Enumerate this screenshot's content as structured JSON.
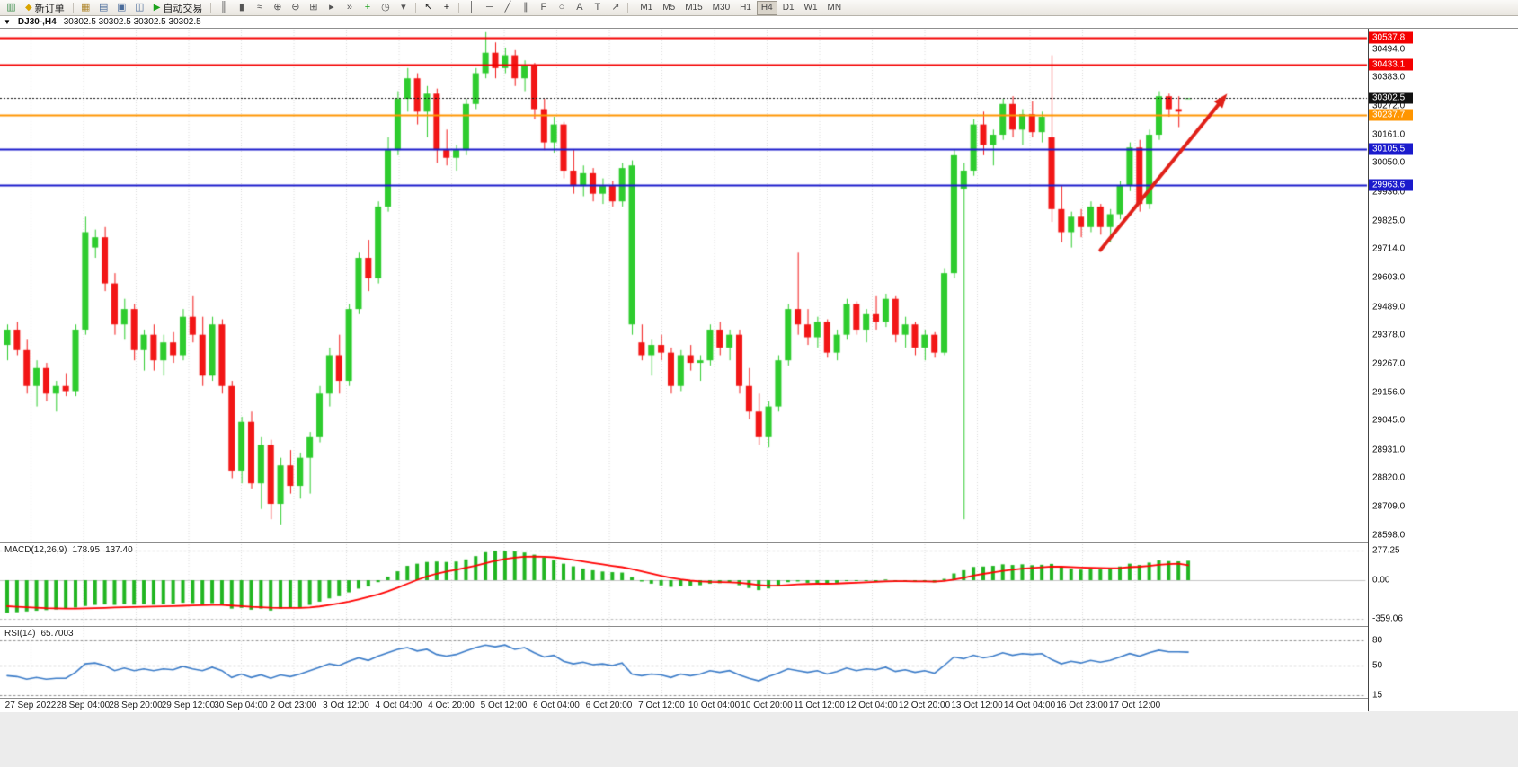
{
  "toolbar": {
    "new_order_label": "新订单",
    "autotrade_label": "自动交易",
    "items": [
      {
        "type": "icon",
        "name": "new-chart-icon",
        "glyph": "▥",
        "color": "#3f8f4f"
      },
      {
        "type": "button",
        "name": "new-order-button",
        "glyph": "◆",
        "glyph_color": "#d9a400",
        "label_key": "new_order_label"
      },
      {
        "type": "sep"
      },
      {
        "type": "icon",
        "name": "chart-profiles-icon",
        "glyph": "▦",
        "color": "#b08830"
      },
      {
        "type": "icon",
        "name": "market-watch-icon",
        "glyph": "▤",
        "color": "#4a6b9a"
      },
      {
        "type": "icon",
        "name": "navigator-icon",
        "glyph": "▣",
        "color": "#4a6b9a"
      },
      {
        "type": "icon",
        "name": "terminal-icon",
        "glyph": "◫",
        "color": "#4a6b9a"
      },
      {
        "type": "button",
        "name": "autotrade-button",
        "glyph": "▶",
        "glyph_color": "#1ca21c",
        "label_key": "autotrade_label"
      },
      {
        "type": "sep"
      },
      {
        "type": "icon",
        "name": "bar-chart-icon",
        "glyph": "║",
        "color": "#555"
      },
      {
        "type": "icon",
        "name": "candlestick-chart-icon",
        "glyph": "▮",
        "color": "#555"
      },
      {
        "type": "icon",
        "name": "line-chart-icon",
        "glyph": "≈",
        "color": "#555"
      },
      {
        "type": "icon",
        "name": "zoom-in-icon",
        "glyph": "⊕",
        "color": "#555"
      },
      {
        "type": "icon",
        "name": "zoom-out-icon",
        "glyph": "⊖",
        "color": "#555"
      },
      {
        "type": "icon",
        "name": "tile-windows-icon",
        "glyph": "⊞",
        "color": "#555"
      },
      {
        "type": "icon",
        "name": "auto-scroll-icon",
        "glyph": "▸",
        "color": "#555"
      },
      {
        "type": "icon",
        "name": "chart-shift-icon",
        "glyph": "»",
        "color": "#555"
      },
      {
        "type": "icon",
        "name": "indicators-icon",
        "glyph": "+",
        "color": "#1ca21c"
      },
      {
        "type": "icon",
        "name": "periods-icon",
        "glyph": "◷",
        "color": "#555"
      },
      {
        "type": "icon",
        "name": "templates-icon",
        "glyph": "▾",
        "color": "#555"
      },
      {
        "type": "sep"
      },
      {
        "type": "icon",
        "name": "cursor-icon",
        "glyph": "↖",
        "color": "#222"
      },
      {
        "type": "icon",
        "name": "crosshair-icon",
        "glyph": "+",
        "color": "#222"
      },
      {
        "type": "sep"
      },
      {
        "type": "icon",
        "name": "vertical-line-icon",
        "glyph": "│",
        "color": "#555"
      },
      {
        "type": "icon",
        "name": "horizontal-line-icon",
        "glyph": "─",
        "color": "#555"
      },
      {
        "type": "icon",
        "name": "trendline-icon",
        "glyph": "╱",
        "color": "#555"
      },
      {
        "type": "icon",
        "name": "equidistant-channel-icon",
        "glyph": "∥",
        "color": "#555"
      },
      {
        "type": "icon",
        "name": "fibonacci-icon",
        "glyph": "F",
        "color": "#555"
      },
      {
        "type": "icon",
        "name": "shapes-icon",
        "glyph": "○",
        "color": "#555"
      },
      {
        "type": "icon",
        "name": "text-icon",
        "glyph": "A",
        "color": "#555"
      },
      {
        "type": "icon",
        "name": "text-label-icon",
        "glyph": "T",
        "color": "#555"
      },
      {
        "type": "icon",
        "name": "arrows-icon",
        "glyph": "↗",
        "color": "#555"
      },
      {
        "type": "sep"
      }
    ],
    "timeframes": [
      "M1",
      "M5",
      "M15",
      "M30",
      "H1",
      "H4",
      "D1",
      "W1",
      "MN"
    ],
    "active_timeframe": "H4"
  },
  "chart_window": {
    "title": "DJ30-,H4",
    "ohlc": "30302.5 30302.5 30302.5 30302.5"
  },
  "levels": [
    {
      "label": "30537.8",
      "value": 30537.8,
      "color": "#f40000",
      "style": "solid",
      "type": "resistance-line"
    },
    {
      "label": "30433.1",
      "value": 30433.1,
      "color": "#f40000",
      "style": "solid",
      "type": "resistance-line"
    },
    {
      "label": "30302.5",
      "value": 30302.5,
      "color": "#111111",
      "style": "dotted",
      "type": "current-price-line"
    },
    {
      "label": "30237.7",
      "value": 30237.7,
      "color": "#ff9500",
      "style": "solid",
      "type": "pivot-line"
    },
    {
      "label": "30105.5",
      "value": 30105.5,
      "color": "#1a1acc",
      "style": "solid",
      "type": "support-line"
    },
    {
      "label": "29963.6",
      "value": 29963.6,
      "color": "#1a1acc",
      "style": "solid",
      "type": "support-line"
    }
  ],
  "price_axis": [
    "30494.0",
    "30383.0",
    "30272.0",
    "30161.0",
    "30050.0",
    "29936.0",
    "29825.0",
    "29714.0",
    "29603.0",
    "29489.0",
    "29378.0",
    "29267.0",
    "29156.0",
    "29045.0",
    "28931.0",
    "28820.0",
    "28709.0",
    "28598.0"
  ],
  "macd": {
    "label": "MACD(12,26,9)",
    "value_main": "178.95",
    "value_signal": "137.40",
    "axis": [
      "277.25",
      "0.00",
      "-359.06"
    ]
  },
  "rsi": {
    "label": "RSI(14)",
    "value": "65.7003",
    "axis": [
      "80",
      "50",
      "15"
    ]
  },
  "time_axis": [
    "27 Sep 2022",
    "28 Sep 04:00",
    "28 Sep 20:00",
    "29 Sep 12:00",
    "30 Sep 04:00",
    "2 Oct 23:00",
    "3 Oct 12:00",
    "4 Oct 04:00",
    "4 Oct 20:00",
    "5 Oct 12:00",
    "6 Oct 04:00",
    "6 Oct 20:00",
    "7 Oct 12:00",
    "10 Oct 04:00",
    "10 Oct 20:00",
    "11 Oct 12:00",
    "12 Oct 04:00",
    "12 Oct 20:00",
    "13 Oct 12:00",
    "14 Oct 04:00",
    "16 Oct 23:00",
    "17 Oct 12:00"
  ],
  "colors": {
    "bull": "#2ecc2e",
    "bear": "#f21616",
    "macd_hist": "#21b521",
    "macd_signal": "#ff0000",
    "rsi_line": "#3a7bc8",
    "arrow": "#e02018",
    "grid": "#dadada",
    "level_dash": "#999999"
  },
  "chart_data": {
    "type": "candlestick",
    "symbol": "DJ30-",
    "timeframe": "H4",
    "ylim": [
      28580,
      30570
    ],
    "candles": [
      [
        29340,
        29420,
        29280,
        29400
      ],
      [
        29400,
        29430,
        29300,
        29320
      ],
      [
        29320,
        29360,
        29150,
        29180
      ],
      [
        29180,
        29280,
        29100,
        29250
      ],
      [
        29250,
        29270,
        29120,
        29150
      ],
      [
        29150,
        29200,
        29080,
        29180
      ],
      [
        29180,
        29230,
        29140,
        29160
      ],
      [
        29160,
        29420,
        29140,
        29400
      ],
      [
        29400,
        29840,
        29380,
        29780
      ],
      [
        29720,
        29790,
        29680,
        29760
      ],
      [
        29760,
        29800,
        29550,
        29580
      ],
      [
        29580,
        29620,
        29380,
        29420
      ],
      [
        29420,
        29520,
        29360,
        29480
      ],
      [
        29480,
        29500,
        29280,
        29320
      ],
      [
        29320,
        29400,
        29240,
        29380
      ],
      [
        29380,
        29420,
        29240,
        29280
      ],
      [
        29280,
        29380,
        29220,
        29350
      ],
      [
        29350,
        29390,
        29270,
        29300
      ],
      [
        29300,
        29480,
        29280,
        29450
      ],
      [
        29450,
        29530,
        29350,
        29380
      ],
      [
        29380,
        29450,
        29180,
        29220
      ],
      [
        29220,
        29450,
        29200,
        29420
      ],
      [
        29420,
        29440,
        29150,
        29180
      ],
      [
        29180,
        29200,
        28820,
        28850
      ],
      [
        28850,
        29060,
        28800,
        29040
      ],
      [
        29040,
        29080,
        28780,
        28800
      ],
      [
        28800,
        28980,
        28700,
        28950
      ],
      [
        28950,
        28970,
        28660,
        28720
      ],
      [
        28720,
        28900,
        28640,
        28870
      ],
      [
        28870,
        28930,
        28760,
        28790
      ],
      [
        28790,
        28920,
        28740,
        28900
      ],
      [
        28900,
        29000,
        28760,
        28980
      ],
      [
        28980,
        29180,
        28960,
        29150
      ],
      [
        29150,
        29330,
        29100,
        29300
      ],
      [
        29300,
        29380,
        29150,
        29200
      ],
      [
        29200,
        29500,
        29180,
        29480
      ],
      [
        29480,
        29700,
        29460,
        29680
      ],
      [
        29680,
        29750,
        29550,
        29600
      ],
      [
        29600,
        29900,
        29580,
        29880
      ],
      [
        29880,
        30150,
        29860,
        30100
      ],
      [
        30100,
        30330,
        30080,
        30300
      ],
      [
        30300,
        30420,
        30250,
        30380
      ],
      [
        30380,
        30400,
        30200,
        30250
      ],
      [
        30250,
        30350,
        30150,
        30320
      ],
      [
        30320,
        30340,
        30050,
        30100
      ],
      [
        30100,
        30180,
        30040,
        30070
      ],
      [
        30070,
        30120,
        30020,
        30100
      ],
      [
        30100,
        30300,
        30080,
        30280
      ],
      [
        30280,
        30420,
        30260,
        30400
      ],
      [
        30400,
        30560,
        30380,
        30480
      ],
      [
        30480,
        30520,
        30380,
        30420
      ],
      [
        30420,
        30500,
        30400,
        30470
      ],
      [
        30470,
        30490,
        30350,
        30380
      ],
      [
        30380,
        30450,
        30330,
        30430
      ],
      [
        30430,
        30440,
        30220,
        30260
      ],
      [
        30260,
        30300,
        30100,
        30130
      ],
      [
        30130,
        30230,
        30090,
        30200
      ],
      [
        30200,
        30210,
        29990,
        30020
      ],
      [
        30020,
        30100,
        29930,
        29960
      ],
      [
        29960,
        30040,
        29920,
        30010
      ],
      [
        30010,
        30030,
        29900,
        29930
      ],
      [
        29930,
        29990,
        29890,
        29960
      ],
      [
        29960,
        29980,
        29880,
        29900
      ],
      [
        29900,
        30050,
        29880,
        30030
      ],
      [
        29420,
        30060,
        29380,
        30040
      ],
      [
        29350,
        29420,
        29280,
        29300
      ],
      [
        29300,
        29360,
        29220,
        29340
      ],
      [
        29340,
        29380,
        29280,
        29310
      ],
      [
        29310,
        29330,
        29150,
        29180
      ],
      [
        29180,
        29320,
        29160,
        29300
      ],
      [
        29300,
        29340,
        29240,
        29270
      ],
      [
        29270,
        29300,
        29200,
        29280
      ],
      [
        29280,
        29420,
        29260,
        29400
      ],
      [
        29400,
        29430,
        29300,
        29330
      ],
      [
        29330,
        29400,
        29280,
        29380
      ],
      [
        29380,
        29400,
        29150,
        29180
      ],
      [
        29180,
        29250,
        29050,
        29080
      ],
      [
        29080,
        29150,
        28950,
        28980
      ],
      [
        28980,
        29120,
        28940,
        29100
      ],
      [
        29100,
        29300,
        29080,
        29280
      ],
      [
        29280,
        29500,
        29260,
        29480
      ],
      [
        29480,
        29700,
        29380,
        29420
      ],
      [
        29420,
        29480,
        29340,
        29370
      ],
      [
        29370,
        29450,
        29330,
        29430
      ],
      [
        29430,
        29440,
        29290,
        29310
      ],
      [
        29310,
        29400,
        29280,
        29380
      ],
      [
        29380,
        29520,
        29360,
        29500
      ],
      [
        29500,
        29510,
        29380,
        29400
      ],
      [
        29400,
        29480,
        29350,
        29460
      ],
      [
        29460,
        29530,
        29400,
        29430
      ],
      [
        29430,
        29540,
        29410,
        29520
      ],
      [
        29520,
        29530,
        29350,
        29380
      ],
      [
        29380,
        29450,
        29330,
        29420
      ],
      [
        29420,
        29430,
        29300,
        29330
      ],
      [
        29330,
        29400,
        29280,
        29380
      ],
      [
        29380,
        29390,
        29290,
        29310
      ],
      [
        29310,
        29640,
        29300,
        29620
      ],
      [
        29620,
        30100,
        29600,
        30080
      ],
      [
        29950,
        30050,
        28660,
        30020
      ],
      [
        30020,
        30220,
        30000,
        30200
      ],
      [
        30200,
        30250,
        30080,
        30120
      ],
      [
        30120,
        30180,
        30040,
        30160
      ],
      [
        30160,
        30300,
        30140,
        30280
      ],
      [
        30280,
        30310,
        30150,
        30180
      ],
      [
        30180,
        30260,
        30120,
        30240
      ],
      [
        30240,
        30290,
        30150,
        30170
      ],
      [
        30170,
        30250,
        30130,
        30230
      ],
      [
        30150,
        30470,
        29820,
        29870
      ],
      [
        29870,
        29960,
        29740,
        29780
      ],
      [
        29780,
        29860,
        29720,
        29840
      ],
      [
        29840,
        29870,
        29760,
        29800
      ],
      [
        29800,
        29900,
        29780,
        29880
      ],
      [
        29880,
        29890,
        29770,
        29800
      ],
      [
        29800,
        29870,
        29740,
        29850
      ],
      [
        29850,
        29980,
        29830,
        29960
      ],
      [
        29960,
        30130,
        29940,
        30110
      ],
      [
        30110,
        30140,
        29860,
        29890
      ],
      [
        29890,
        30180,
        29870,
        30160
      ],
      [
        30160,
        30330,
        30140,
        30310
      ],
      [
        30310,
        30320,
        30230,
        30260
      ],
      [
        30260,
        30310,
        30190,
        30250
      ],
      [
        30302.5,
        30302.5,
        30302.5,
        30302.5
      ]
    ],
    "macd_hist": [
      -300,
      -295,
      -288,
      -282,
      -276,
      -270,
      -262,
      -252,
      -238,
      -228,
      -224,
      -228,
      -222,
      -226,
      -222,
      -226,
      -222,
      -218,
      -208,
      -212,
      -222,
      -212,
      -228,
      -262,
      -255,
      -272,
      -262,
      -280,
      -262,
      -256,
      -248,
      -228,
      -198,
      -168,
      -148,
      -112,
      -78,
      -58,
      -18,
      32,
      82,
      132,
      152,
      168,
      172,
      168,
      172,
      192,
      222,
      258,
      272,
      270,
      265,
      255,
      235,
      210,
      185,
      152,
      128,
      108,
      92,
      80,
      74,
      70,
      28,
      -12,
      -32,
      -48,
      -62,
      -55,
      -52,
      -46,
      -32,
      -28,
      -24,
      -46,
      -72,
      -92,
      -76,
      -48,
      -18,
      -12,
      -24,
      -24,
      -30,
      -24,
      -8,
      -8,
      -4,
      -4,
      6,
      -4,
      -6,
      -16,
      -10,
      -20,
      12,
      62,
      92,
      122,
      126,
      132,
      146,
      140,
      146,
      138,
      142,
      150,
      118,
      108,
      98,
      104,
      100,
      106,
      126,
      152,
      140,
      162,
      182,
      176,
      174,
      179
    ],
    "macd_signal": [
      -240,
      -245,
      -250,
      -254,
      -258,
      -260,
      -262,
      -262,
      -260,
      -258,
      -255,
      -252,
      -249,
      -247,
      -245,
      -243,
      -241,
      -239,
      -236,
      -233,
      -231,
      -229,
      -229,
      -234,
      -239,
      -245,
      -249,
      -254,
      -256,
      -256,
      -255,
      -251,
      -242,
      -229,
      -215,
      -197,
      -176,
      -155,
      -131,
      -102,
      -69,
      -33,
      2,
      34,
      60,
      80,
      97,
      114,
      134,
      157,
      178,
      195,
      208,
      216,
      219,
      217,
      211,
      200,
      187,
      173,
      159,
      145,
      132,
      120,
      103,
      82,
      61,
      41,
      22,
      7,
      -4,
      -12,
      -16,
      -18,
      -19,
      -24,
      -33,
      -44,
      -50,
      -50,
      -44,
      -38,
      -35,
      -33,
      -33,
      -31,
      -27,
      -23,
      -19,
      -16,
      -12,
      -10,
      -10,
      -11,
      -11,
      -13,
      -8,
      5,
      22,
      42,
      58,
      72,
      86,
      97,
      107,
      113,
      119,
      125,
      124,
      121,
      117,
      114,
      112,
      111,
      113,
      120,
      124,
      131,
      141,
      148,
      152,
      137
    ],
    "rsi_values": [
      38,
      37,
      34,
      36,
      34,
      35,
      35,
      42,
      52,
      53,
      50,
      44,
      47,
      44,
      46,
      44,
      46,
      45,
      49,
      46,
      44,
      48,
      44,
      36,
      40,
      36,
      39,
      35,
      39,
      37,
      40,
      44,
      48,
      52,
      50,
      55,
      59,
      56,
      61,
      65,
      69,
      71,
      67,
      69,
      63,
      61,
      63,
      67,
      71,
      74,
      72,
      74,
      69,
      71,
      65,
      60,
      62,
      55,
      52,
      54,
      51,
      52,
      50,
      53,
      40,
      38,
      40,
      39,
      36,
      40,
      38,
      40,
      44,
      42,
      44,
      39,
      35,
      32,
      37,
      41,
      46,
      44,
      42,
      44,
      40,
      43,
      47,
      44,
      46,
      45,
      48,
      43,
      45,
      42,
      44,
      41,
      50,
      60,
      58,
      62,
      59,
      61,
      65,
      62,
      64,
      63,
      64,
      57,
      52,
      55,
      53,
      56,
      54,
      56,
      60,
      64,
      61,
      65,
      68,
      66,
      66,
      65.7
    ],
    "annotation_arrow": {
      "start_index": 112,
      "start_price": 29710,
      "end_index": 125,
      "end_price": 30320,
      "color": "#e02018"
    }
  }
}
